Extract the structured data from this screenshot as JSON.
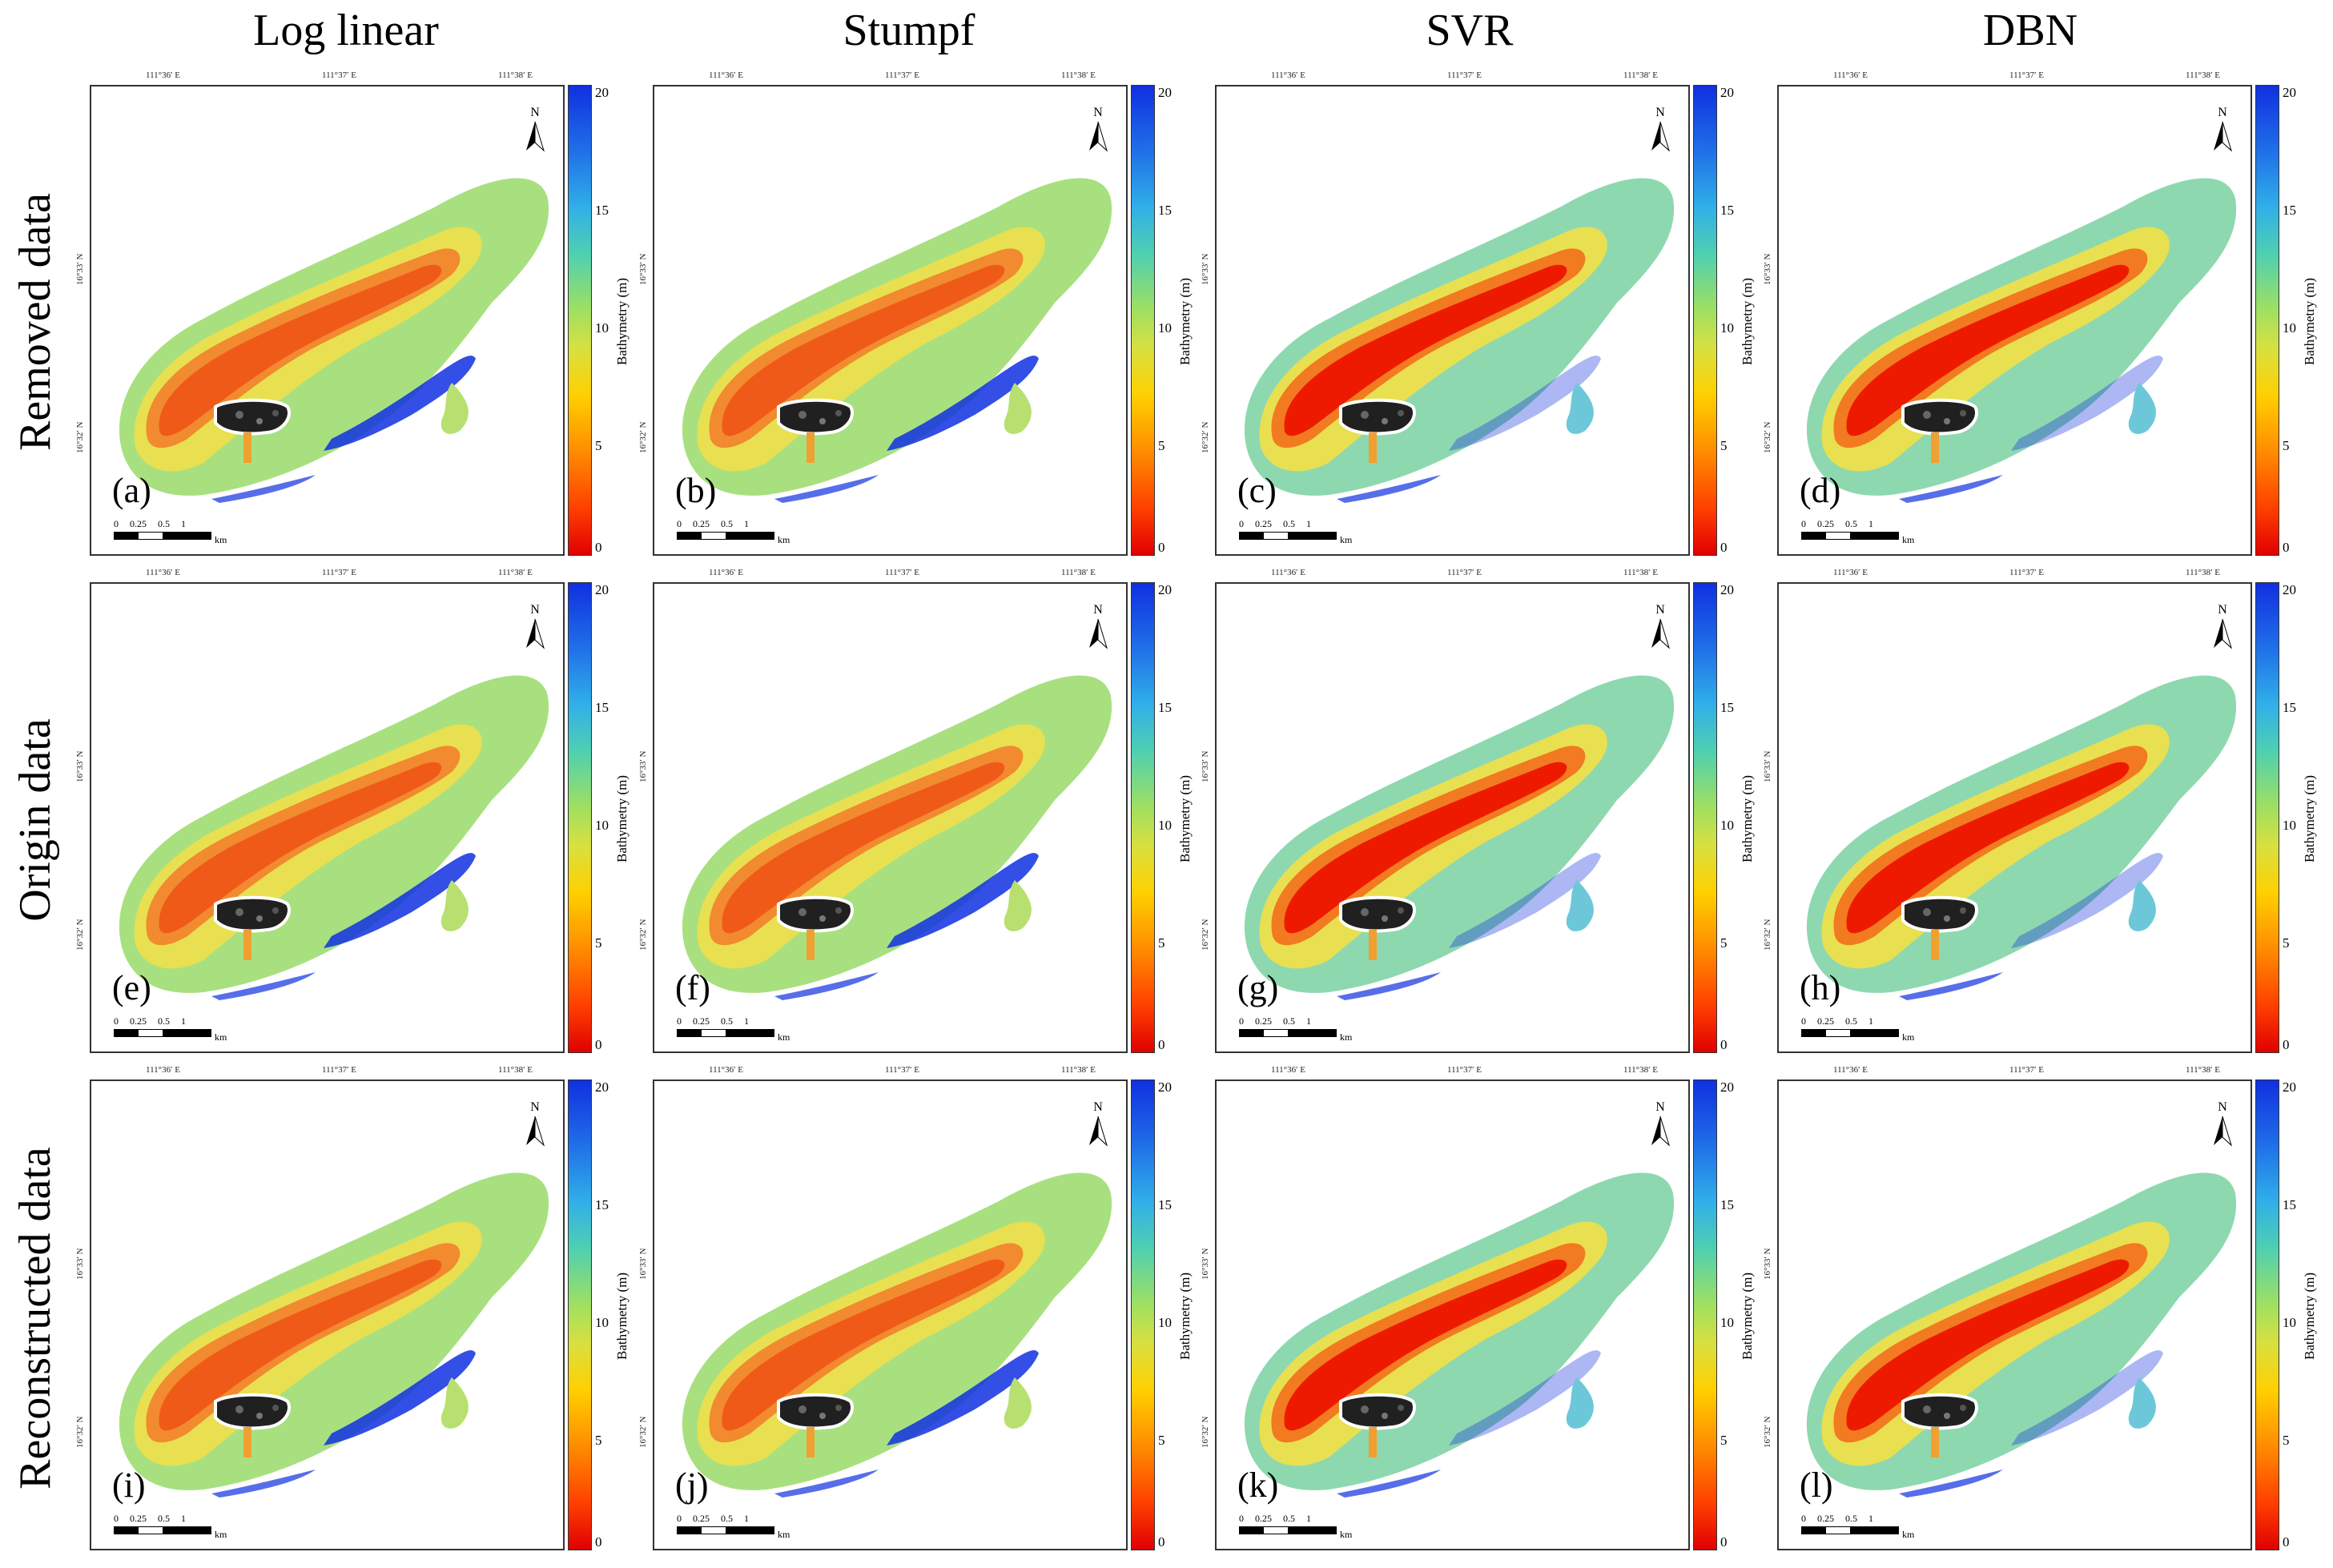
{
  "columns": [
    "Log linear",
    "Stumpf",
    "SVR",
    "DBN"
  ],
  "rows": [
    "Removed data",
    "Origin data",
    "Reconstructed data"
  ],
  "panels": [
    [
      "(a)",
      "(b)",
      "(c)",
      "(d)"
    ],
    [
      "(e)",
      "(f)",
      "(g)",
      "(h)"
    ],
    [
      "(i)",
      "(j)",
      "(k)",
      "(l)"
    ]
  ],
  "lon_ticks": [
    "111°36′ E",
    "111°37′ E",
    "111°38′ E"
  ],
  "lat_ticks": [
    "16°33′ N",
    "16°32′ N"
  ],
  "north": "N",
  "scale": {
    "labels": [
      "0",
      "0.25",
      "0.5",
      "1"
    ],
    "unit": "km"
  },
  "colorbar": {
    "title": "Bathymetry (m)",
    "ticks": [
      "20",
      "15",
      "10",
      "5",
      "0"
    ]
  },
  "colors": {
    "shallow": "#e82000",
    "mid": "#f08a20",
    "edge": "#e8e050",
    "deep": "#1030e0",
    "outer": "#a8e080",
    "land": "#202020"
  }
}
